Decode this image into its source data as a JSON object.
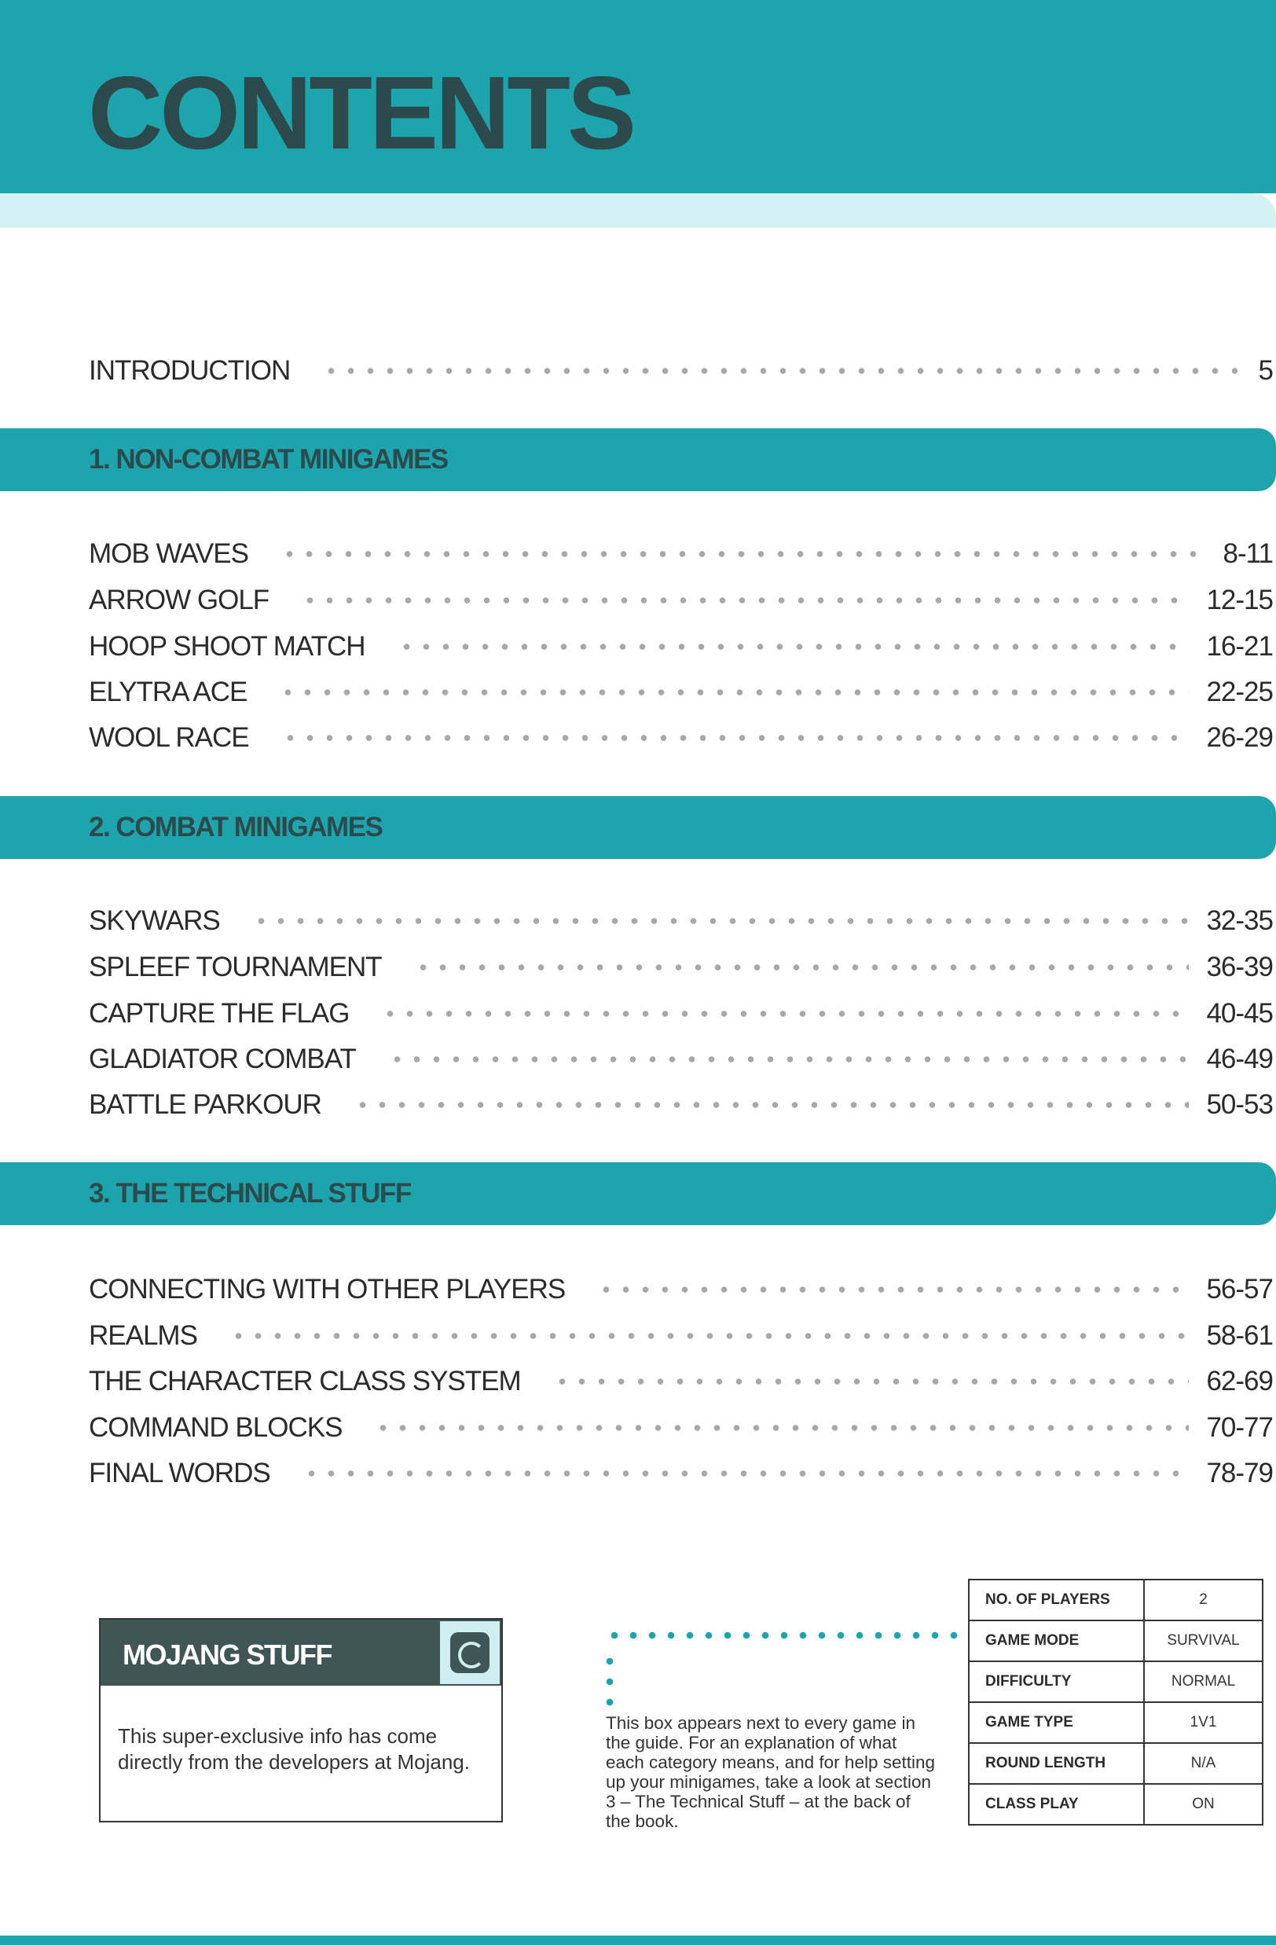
{
  "title": "CONTENTS",
  "introduction": {
    "label": "INTRODUCTION",
    "page": "5"
  },
  "sections": [
    {
      "label": "1. NON-COMBAT MINIGAMES",
      "items": [
        {
          "label": "MOB WAVES",
          "page": "8-11"
        },
        {
          "label": "ARROW GOLF",
          "page": "12-15"
        },
        {
          "label": "HOOP SHOOT MATCH",
          "page": "16-21"
        },
        {
          "label": "ELYTRA ACE",
          "page": "22-25"
        },
        {
          "label": "WOOL RACE",
          "page": "26-29"
        }
      ]
    },
    {
      "label": "2. COMBAT MINIGAMES",
      "items": [
        {
          "label": "SKYWARS",
          "page": "32-35"
        },
        {
          "label": "SPLEEF TOURNAMENT",
          "page": "36-39"
        },
        {
          "label": "CAPTURE THE FLAG",
          "page": "40-45"
        },
        {
          "label": "GLADIATOR COMBAT",
          "page": "46-49"
        },
        {
          "label": "BATTLE PARKOUR",
          "page": "50-53"
        }
      ]
    },
    {
      "label": "3. THE TECHNICAL STUFF",
      "items": [
        {
          "label": "CONNECTING WITH OTHER PLAYERS",
          "page": "56-57"
        },
        {
          "label": "REALMS",
          "page": "58-61"
        },
        {
          "label": "THE CHARACTER CLASS SYSTEM",
          "page": "62-69"
        },
        {
          "label": "COMMAND BLOCKS",
          "page": "70-77"
        },
        {
          "label": "FINAL WORDS",
          "page": "78-79"
        }
      ]
    }
  ],
  "mojang_box": {
    "title": "MOJANG STUFF",
    "icon": "mojang-creeper-icon",
    "text": "This super-exclusive info has come directly from the developers at Mojang."
  },
  "explanation": "This box appears next to every game in the guide. For an explanation of what each category means, and for help setting up your minigames, take a look at section 3 – The Technical Stuff – at the back of the book.",
  "info_table": [
    {
      "key": "NO. OF PLAYERS",
      "value": "2"
    },
    {
      "key": "GAME MODE",
      "value": "SURVIVAL"
    },
    {
      "key": "DIFFICULTY",
      "value": "NORMAL"
    },
    {
      "key": "GAME TYPE",
      "value": "1V1"
    },
    {
      "key": "ROUND LENGTH",
      "value": "N/A"
    },
    {
      "key": "CLASS PLAY",
      "value": "ON"
    }
  ],
  "colors": {
    "teal": "#1ea4ad",
    "light_teal": "#d6f1f3",
    "dark_slate": "#2c4a4c"
  }
}
